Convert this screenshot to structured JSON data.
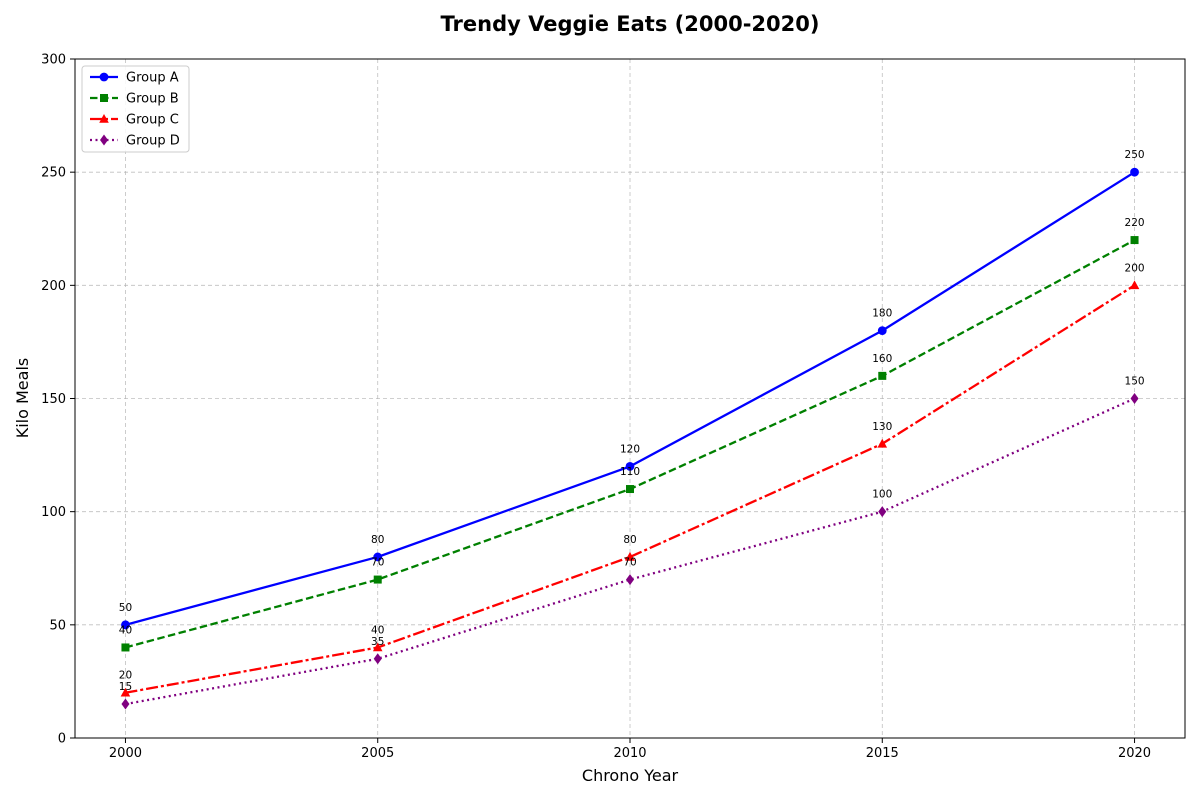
{
  "chart_data": {
    "type": "line",
    "title": "Trendy Veggie Eats (2000-2020)",
    "xlabel": "Chrono Year",
    "ylabel": "Kilo Meals",
    "x": [
      2000,
      2005,
      2010,
      2015,
      2020
    ],
    "x_ticks": [
      "2000",
      "2005",
      "2010",
      "2015",
      "2020"
    ],
    "xlim": [
      1999,
      2021
    ],
    "ylim": [
      0,
      300
    ],
    "y_ticks": [
      "0",
      "50",
      "100",
      "150",
      "200",
      "250",
      "300"
    ],
    "grid": true,
    "legend_position": "top-left",
    "series": [
      {
        "name": "Group A",
        "values": [
          50,
          80,
          120,
          180,
          250
        ],
        "color": "#0000ff",
        "line_style": "solid",
        "marker": "circle"
      },
      {
        "name": "Group B",
        "values": [
          40,
          70,
          110,
          160,
          220
        ],
        "color": "#008000",
        "line_style": "dashed",
        "marker": "square"
      },
      {
        "name": "Group C",
        "values": [
          20,
          40,
          80,
          130,
          200
        ],
        "color": "#ff0000",
        "line_style": "dashdot",
        "marker": "triangle"
      },
      {
        "name": "Group D",
        "values": [
          15,
          35,
          70,
          100,
          150
        ],
        "color": "#800080",
        "line_style": "dotted",
        "marker": "diamond"
      }
    ]
  }
}
